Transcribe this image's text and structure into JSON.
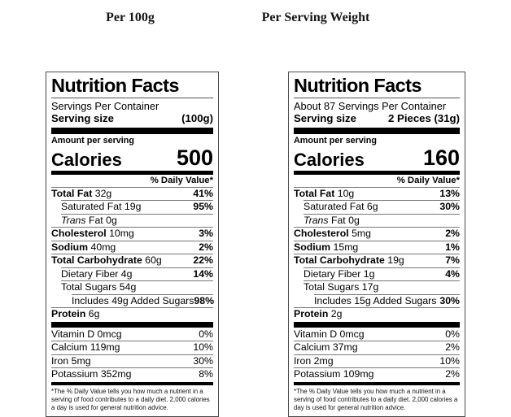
{
  "figure_titles": {
    "left": "Per 100g",
    "right": "Per Serving Weight"
  },
  "colors": {
    "background": "#ffffff",
    "text": "#000000",
    "bar": "#000000",
    "hairline": "#777777",
    "label_border": "#4a4a4a"
  },
  "labels": [
    {
      "title": "Nutrition Facts",
      "servings_line": "Servings Per Container",
      "serving_size_label": "Serving size",
      "serving_size_value": "(100g)",
      "amount_per_serving_label": "Amount per serving",
      "calories_label": "Calories",
      "calories_value": "500",
      "daily_value_header": "% Daily Value*",
      "nutrient_rows": [
        {
          "bold": "Total Fat",
          "text": " 32g",
          "dv": "41%",
          "indent": 0
        },
        {
          "text": "Saturated Fat 19g",
          "dv": "95%",
          "indent": 1
        },
        {
          "italic": "Trans",
          "text": " Fat 0g",
          "dv": "",
          "indent": 1
        },
        {
          "bold": "Cholesterol",
          "text": " 10mg",
          "dv": "3%",
          "indent": 0
        },
        {
          "bold": "Sodium",
          "text": " 40mg",
          "dv": "2%",
          "indent": 0
        },
        {
          "bold": "Total Carbohydrate",
          "text": " 60g",
          "dv": "22%",
          "indent": 0
        },
        {
          "text": "Dietary Fiber 4g",
          "dv": "14%",
          "indent": 1
        },
        {
          "text": "Total Sugars 54g",
          "dv": "",
          "indent": 1
        },
        {
          "text": "Includes 49g Added Sugars",
          "dv": "98%",
          "indent": 2
        },
        {
          "bold": "Protein",
          "text": " 6g",
          "dv": "",
          "indent": 0
        }
      ],
      "vitamin_rows": [
        {
          "text": "Vitamin D 0mcg",
          "dv": "0%"
        },
        {
          "text": "Calcium 119mg",
          "dv": "10%"
        },
        {
          "text": "Iron 5mg",
          "dv": "30%"
        },
        {
          "text": "Potassium 352mg",
          "dv": "8%"
        }
      ],
      "footnote": "*The % Daily Value tells you how much a nutrient in a serving of food contributes to a daily diet. 2,000 calories a day is used for general nutrition advice."
    },
    {
      "title": "Nutrition Facts",
      "servings_line": "About 87 Servings Per Container",
      "serving_size_label": "Serving size",
      "serving_size_value": "2 Pieces (31g)",
      "amount_per_serving_label": "Amount per serving",
      "calories_label": "Calories",
      "calories_value": "160",
      "daily_value_header": "% Daily Value*",
      "nutrient_rows": [
        {
          "bold": "Total Fat",
          "text": " 10g",
          "dv": "13%",
          "indent": 0
        },
        {
          "text": "Saturated Fat 6g",
          "dv": "30%",
          "indent": 1
        },
        {
          "italic": "Trans",
          "text": " Fat 0g",
          "dv": "",
          "indent": 1
        },
        {
          "bold": "Cholesterol",
          "text": " 5mg",
          "dv": "2%",
          "indent": 0
        },
        {
          "bold": "Sodium",
          "text": " 15mg",
          "dv": "1%",
          "indent": 0
        },
        {
          "bold": "Total Carbohydrate",
          "text": " 19g",
          "dv": "7%",
          "indent": 0
        },
        {
          "text": "Dietary Fiber 1g",
          "dv": "4%",
          "indent": 1
        },
        {
          "text": "Total Sugars 17g",
          "dv": "",
          "indent": 1
        },
        {
          "text": "Includes 15g Added Sugars",
          "dv": "30%",
          "indent": 2
        },
        {
          "bold": "Protein",
          "text": " 2g",
          "dv": "",
          "indent": 0
        }
      ],
      "vitamin_rows": [
        {
          "text": "Vitamin D 0mcg",
          "dv": "0%"
        },
        {
          "text": "Calcium 37mg",
          "dv": "2%"
        },
        {
          "text": "Iron 2mg",
          "dv": "10%"
        },
        {
          "text": "Potassium 109mg",
          "dv": "2%"
        }
      ],
      "footnote": "*The % Daily Value tells you how much a nutrient in a serving of food contributes to a daily diet. 2,000 calories a day is used for general nutrition advice."
    }
  ]
}
